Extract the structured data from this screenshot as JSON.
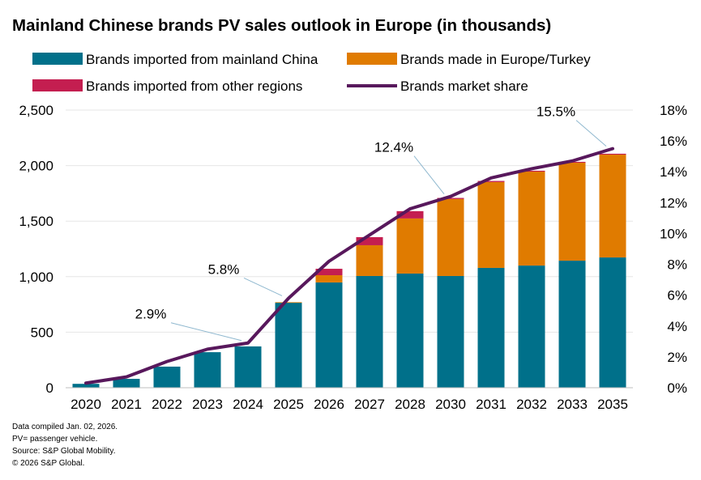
{
  "chart_data": {
    "type": "bar",
    "stacked": true,
    "title": "Mainland Chinese brands PV sales outlook in Europe (in thousands)",
    "categories": [
      "2020",
      "2021",
      "2022",
      "2023",
      "2024",
      "2025",
      "2026",
      "2027",
      "2028",
      "2030",
      "2031",
      "2032",
      "2033",
      "2035"
    ],
    "series": [
      {
        "name": "Brands imported from mainland China",
        "color": "#00708a",
        "axis": "left",
        "values": [
          35,
          80,
          190,
          320,
          372,
          765,
          948,
          1006,
          1028,
          1006,
          1079,
          1100,
          1144,
          1173
        ]
      },
      {
        "name": "Brands made in Europe/Turkey",
        "color": "#e07b00",
        "axis": "left",
        "values": [
          0,
          0,
          0,
          0,
          0,
          5,
          65,
          277,
          496,
          693,
          773,
          846,
          882,
          926
        ]
      },
      {
        "name": "Brands imported from other regions",
        "color": "#c41e50",
        "axis": "left",
        "values": [
          0,
          0,
          0,
          0,
          0,
          0,
          58,
          73,
          66,
          10,
          10,
          8,
          8,
          8
        ]
      },
      {
        "name": "Brands market share",
        "type": "line",
        "color": "#58185c",
        "axis": "right",
        "unit": "%",
        "values": [
          0.3,
          0.7,
          1.7,
          2.5,
          2.9,
          5.8,
          8.2,
          9.9,
          11.6,
          12.4,
          13.6,
          14.2,
          14.7,
          15.5
        ]
      }
    ],
    "annotations": [
      {
        "text": "2.9%",
        "category": "2024"
      },
      {
        "text": "5.8%",
        "category": "2025"
      },
      {
        "text": "12.4%",
        "category": "2030"
      },
      {
        "text": "15.5%",
        "category": "2035"
      }
    ],
    "ylim": [
      0,
      2500
    ],
    "yticks": [
      "0",
      "500",
      "1,000",
      "1,500",
      "2,000",
      "2,500"
    ],
    "y2lim": [
      0,
      18
    ],
    "y2ticks": [
      "0%",
      "2%",
      "4%",
      "6%",
      "8%",
      "10%",
      "12%",
      "14%",
      "16%",
      "18%"
    ],
    "grid": true,
    "legend_placement": "top"
  },
  "notes": [
    "Data compiled Jan. 02, 2026.",
    "PV= passenger vehicle.",
    "Source: S&P Global Mobility.",
    "© 2026 S&P Global."
  ]
}
